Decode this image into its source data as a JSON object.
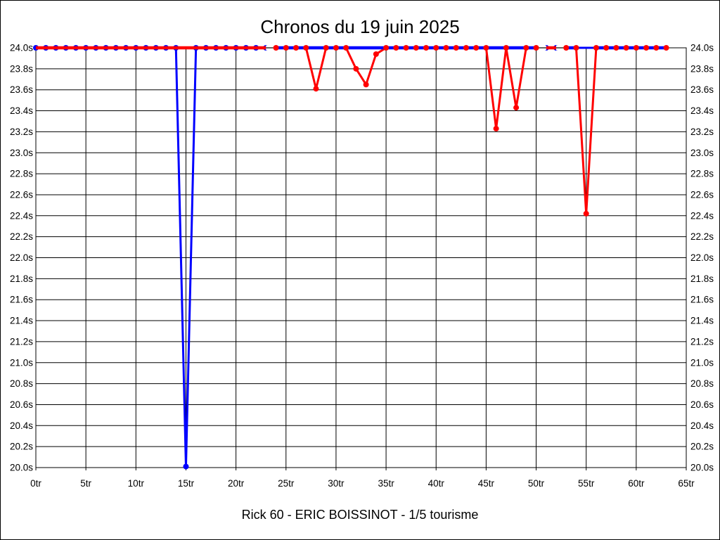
{
  "header": {
    "title": "Chronos du 19 juin 2025"
  },
  "footer": {
    "caption": "Rick 60 - ERIC BOISSINOT - 1/5 tourisme"
  },
  "colors": {
    "blue_series": "#0000ff",
    "red_series": "#ff0000",
    "grid": "#000000",
    "background": "#ffffff"
  },
  "chart_data": {
    "type": "line",
    "title": "Chronos du 19 juin 2025",
    "caption": "Rick 60 - ERIC BOISSINOT - 1/5 tourisme",
    "xlabel": "",
    "ylabel": "",
    "x_unit": "tr",
    "y_unit": "s",
    "xlim": [
      0,
      65
    ],
    "ylim": [
      20.0,
      24.0
    ],
    "x_tick_step": 5,
    "y_tick_step": 0.2,
    "grid": true,
    "legend": "none",
    "x_tick_labels": [
      "0tr",
      "5tr",
      "10tr",
      "15tr",
      "20tr",
      "25tr",
      "30tr",
      "35tr",
      "40tr",
      "45tr",
      "50tr",
      "55tr",
      "60tr",
      "65tr"
    ],
    "y_tick_labels": [
      "24.0s",
      "23.8s",
      "23.6s",
      "23.4s",
      "23.2s",
      "23.0s",
      "22.8s",
      "22.6s",
      "22.4s",
      "22.2s",
      "22.0s",
      "21.8s",
      "21.6s",
      "21.4s",
      "21.2s",
      "21.0s",
      "20.8s",
      "20.6s",
      "20.4s",
      "20.2s",
      "20.0s"
    ],
    "series": [
      {
        "name": "blue",
        "color": "#0000ff",
        "x": [
          0,
          1,
          2,
          3,
          4,
          5,
          6,
          7,
          8,
          9,
          10,
          11,
          12,
          13,
          14,
          15,
          16,
          17,
          18,
          19,
          20,
          21,
          22,
          23,
          24,
          25,
          26,
          27,
          28,
          29,
          30,
          31,
          32,
          33,
          34,
          35,
          36,
          37,
          38,
          39,
          40,
          41,
          42,
          43,
          44,
          45,
          46,
          47,
          48,
          49,
          50,
          51,
          52,
          53,
          54,
          55,
          56,
          57,
          58,
          59,
          60,
          61,
          62,
          63
        ],
        "values": [
          24,
          24,
          24,
          24,
          24,
          24,
          24,
          24,
          24,
          24,
          24,
          24,
          24,
          24,
          24,
          20.01,
          24,
          24,
          24,
          24,
          24,
          24,
          24,
          24,
          24,
          24,
          24,
          24,
          24,
          24,
          24,
          24,
          24,
          24,
          24,
          24,
          24,
          24,
          24,
          24,
          24,
          24,
          24,
          24,
          24,
          24,
          24,
          24,
          24,
          24,
          24,
          24,
          24,
          24,
          24,
          24,
          24,
          24,
          24,
          24,
          24,
          24,
          24,
          24
        ],
        "marker_laps": [
          0,
          1,
          2,
          3,
          4,
          5,
          6,
          7,
          8,
          9,
          10,
          11,
          12,
          13,
          14,
          15,
          16,
          17,
          18,
          19,
          20,
          21,
          22,
          23,
          51,
          52
        ]
      },
      {
        "name": "red",
        "color": "#ff0000",
        "x": [
          0,
          1,
          2,
          3,
          4,
          5,
          6,
          7,
          8,
          9,
          10,
          11,
          12,
          13,
          14,
          15,
          16,
          17,
          18,
          19,
          20,
          21,
          22,
          23,
          24,
          25,
          26,
          27,
          28,
          29,
          30,
          31,
          32,
          33,
          34,
          35,
          36,
          37,
          38,
          39,
          40,
          41,
          42,
          43,
          44,
          45,
          46,
          47,
          48,
          49,
          50,
          51,
          52,
          53,
          54,
          55,
          56,
          57,
          58,
          59,
          60,
          61,
          62,
          63
        ],
        "values": [
          24,
          24,
          24,
          24,
          24,
          24,
          24,
          24,
          24,
          24,
          24,
          24,
          24,
          24,
          24,
          24,
          24,
          24,
          24,
          24,
          24,
          24,
          24,
          24,
          24,
          24,
          24,
          24,
          23.61,
          24,
          24,
          24,
          23.8,
          23.65,
          23.94,
          24,
          24,
          24,
          24,
          24,
          24,
          24,
          24,
          24,
          24,
          24,
          23.23,
          24,
          23.43,
          24,
          24,
          24,
          24,
          24,
          24,
          22.42,
          24,
          24,
          24,
          24,
          24,
          24,
          24,
          24
        ],
        "marker_laps": [
          24,
          25,
          26,
          27,
          28,
          29,
          30,
          31,
          32,
          33,
          34,
          35,
          36,
          37,
          38,
          39,
          40,
          41,
          42,
          43,
          44,
          45,
          46,
          47,
          48,
          49,
          50,
          53,
          54,
          55,
          56,
          57,
          58,
          59,
          60,
          61,
          62,
          63
        ]
      }
    ],
    "top_line_segments": {
      "red_over": [
        [
          0,
          23
        ],
        [
          51,
          52
        ]
      ],
      "blue_over": [
        [
          24,
          50
        ],
        [
          53,
          54
        ],
        [
          56,
          63
        ]
      ],
      "gaps": [
        [
          23,
          24
        ],
        [
          50,
          51
        ],
        [
          52,
          53
        ]
      ]
    }
  }
}
